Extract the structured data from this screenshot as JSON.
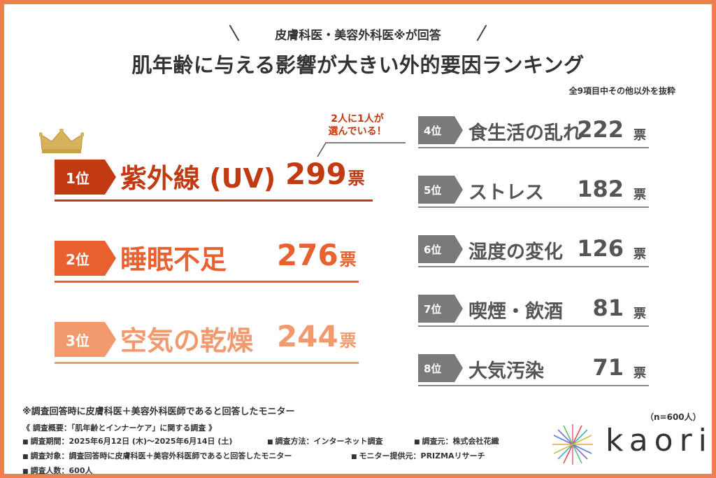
{
  "header": {
    "eyebrow": "皮膚科医・美容外科医※が回答",
    "title": "肌年齢に与える影響が大きい外的要因ランキング",
    "subnote": "全9項目中その他以外を抜粋"
  },
  "callout": {
    "line1": "2人に1人が",
    "line2": "選んでいる！"
  },
  "unit": "票",
  "colors": {
    "rank1": "#c13a12",
    "rank2": "#e8612f",
    "rank3": "#f29a6e",
    "gray": "#7a7a7a",
    "frame": "#ef7f4f",
    "crown": "#d8b25a"
  },
  "chart_data": {
    "type": "table",
    "title": "肌年齢に与える影響が大きい外的要因ランキング",
    "columns": [
      "rank",
      "factor",
      "votes"
    ],
    "rows": [
      {
        "rank": "1位",
        "label": "紫外線 (UV)",
        "value": 299
      },
      {
        "rank": "2位",
        "label": "睡眠不足",
        "value": 276
      },
      {
        "rank": "3位",
        "label": "空気の乾燥",
        "value": 244
      },
      {
        "rank": "4位",
        "label": "食生活の乱れ",
        "value": 222
      },
      {
        "rank": "5位",
        "label": "ストレス",
        "value": 182
      },
      {
        "rank": "6位",
        "label": "湿度の変化",
        "value": 126
      },
      {
        "rank": "7位",
        "label": "喫煙・飲酒",
        "value": 81
      },
      {
        "rank": "8位",
        "label": "大気汚染",
        "value": 71
      }
    ]
  },
  "footer": {
    "footnote": "※調査回答時に皮膚科医＋美容外科医師であると回答したモニター",
    "n_note": "（n=600人）",
    "survey_title": "《 調査概要：「肌年齢とインナーケア」に関する調査 》",
    "period": "調査期間：2025年6月12日 (木)〜2025年6月14日 (土)",
    "method": "調査方法：インターネット調査",
    "organizer": "調査元：株式会社花織",
    "target": "調査対象：調査回答時に皮膚科医＋美容外科医師であると回答したモニター",
    "provider": "モニター提供元：PRIZMAリサーチ",
    "count": "調査人数：600人"
  },
  "brand": {
    "logo_text": "kaori",
    "logo_icon": "kaori-starburst-logo"
  }
}
